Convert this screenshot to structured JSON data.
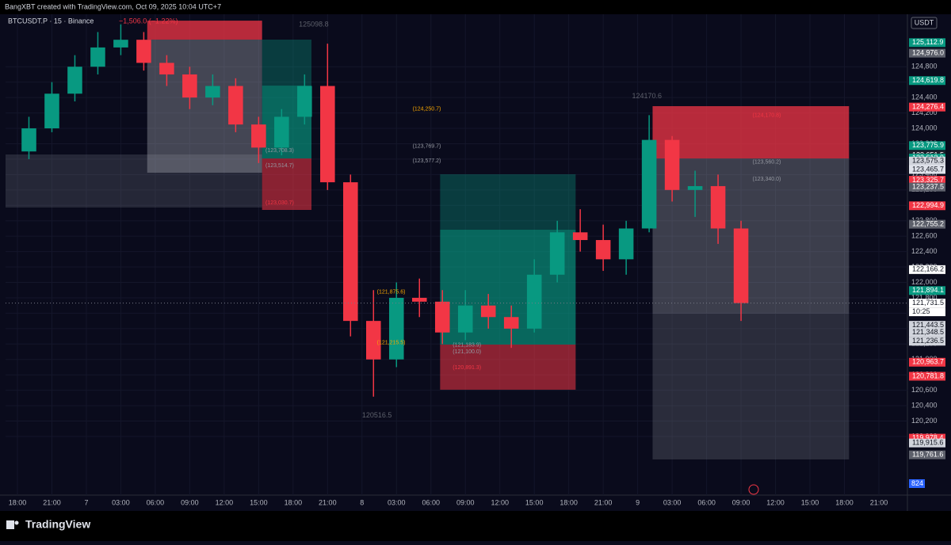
{
  "chart_data": {
    "type": "candlestick",
    "header": "BangXBT created with TradingView.com, Oct 09, 2025 10:04 UTC+7",
    "symbol": "BTCUSDT.P · 15 · Binance",
    "change": "−1,506.0 (−1.22%)",
    "currency": "USDT",
    "brand": "TradingView",
    "up_color": "#089981",
    "down_color": "#f23645",
    "xlim": [
      -1.035,
      77.485
    ],
    "xticks": [
      {
        "value": 0,
        "label": "18:00"
      },
      {
        "value": 3,
        "label": "21:00"
      },
      {
        "value": 6,
        "label": "7"
      },
      {
        "value": 9,
        "label": "03:00"
      },
      {
        "value": 12,
        "label": "06:00"
      },
      {
        "value": 15,
        "label": "09:00"
      },
      {
        "value": 18,
        "label": "12:00"
      },
      {
        "value": 21,
        "label": "15:00"
      },
      {
        "value": 24,
        "label": "18:00"
      },
      {
        "value": 27,
        "label": "21:00"
      },
      {
        "value": 30,
        "label": "8"
      },
      {
        "value": 33,
        "label": "03:00"
      },
      {
        "value": 36,
        "label": "06:00"
      },
      {
        "value": 39,
        "label": "09:00"
      },
      {
        "value": 42,
        "label": "12:00"
      },
      {
        "value": 45,
        "label": "15:00"
      },
      {
        "value": 48,
        "label": "18:00"
      },
      {
        "value": 51,
        "label": "21:00"
      },
      {
        "value": 54,
        "label": "9"
      },
      {
        "value": 57,
        "label": "03:00"
      },
      {
        "value": 60,
        "label": "06:00"
      },
      {
        "value": 63,
        "label": "09:00"
      },
      {
        "value": 66,
        "label": "12:00"
      },
      {
        "value": 69,
        "label": "15:00"
      },
      {
        "value": 72,
        "label": "18:00"
      },
      {
        "value": 75,
        "label": "21:00"
      }
    ],
    "ylim": [
      119239,
      125481
    ],
    "yticks": [
      {
        "value": 120000,
        "label": "120,000"
      },
      {
        "value": 120200,
        "label": "120,200"
      },
      {
        "value": 120400,
        "label": "120,400"
      },
      {
        "value": 120600,
        "label": "120,600"
      },
      {
        "value": 120800,
        "label": "120,800"
      },
      {
        "value": 121000,
        "label": "121,000"
      },
      {
        "value": 121200,
        "label": "121,200"
      },
      {
        "value": 121400,
        "label": "121,400"
      },
      {
        "value": 121600,
        "label": "121,600"
      },
      {
        "value": 121800,
        "label": "121,800"
      },
      {
        "value": 122000,
        "label": "122,000"
      },
      {
        "value": 122200,
        "label": "122,200"
      },
      {
        "value": 122400,
        "label": "122,400"
      },
      {
        "value": 122600,
        "label": "122,600"
      },
      {
        "value": 122800,
        "label": "122,800"
      },
      {
        "value": 123000,
        "label": "123,000"
      },
      {
        "value": 123200,
        "label": "123,200"
      },
      {
        "value": 123400,
        "label": "123,400"
      },
      {
        "value": 123600,
        "label": "123,600"
      },
      {
        "value": 123800,
        "label": "123,800"
      },
      {
        "value": 124000,
        "label": "124,000"
      },
      {
        "value": 124200,
        "label": "124,200"
      },
      {
        "value": 124400,
        "label": "124,400"
      },
      {
        "value": 124600,
        "label": "124,600"
      },
      {
        "value": 124800,
        "label": "124,800"
      }
    ],
    "x": [
      1,
      3,
      5,
      7,
      9,
      11,
      13,
      15,
      17,
      19,
      21,
      23,
      25,
      27,
      29,
      31,
      33,
      35,
      37,
      39,
      41,
      43,
      45,
      47,
      49,
      51,
      53,
      55,
      57,
      59,
      61,
      63
    ],
    "open": [
      123700,
      124000,
      124450,
      124800,
      125050,
      125150,
      124850,
      124700,
      124400,
      124550,
      124050,
      123750,
      124150,
      124550,
      123300,
      121500,
      121000,
      121800,
      121750,
      121350,
      121700,
      121550,
      121400,
      122100,
      122650,
      122550,
      122300,
      122700,
      123850,
      123200,
      123250,
      122700
    ],
    "high": [
      124150,
      124600,
      124950,
      125250,
      125350,
      125250,
      124950,
      124800,
      124700,
      124650,
      124150,
      124250,
      124700,
      125098.8,
      123400,
      121900,
      122000,
      122050,
      121900,
      121900,
      121850,
      121700,
      122300,
      122800,
      122950,
      122750,
      122800,
      124170.6,
      123900,
      123450,
      123400,
      122800
    ],
    "low": [
      123600,
      123950,
      124350,
      124700,
      124950,
      124750,
      124550,
      124250,
      124300,
      123950,
      123550,
      123650,
      124050,
      123200,
      121300,
      120516.5,
      120900,
      121550,
      121200,
      121250,
      121400,
      121150,
      121350,
      122000,
      122400,
      122150,
      122100,
      122650,
      123050,
      122850,
      122500,
      121500
    ],
    "close": [
      124000,
      124450,
      124800,
      125050,
      125150,
      124850,
      124700,
      124400,
      124550,
      124050,
      123750,
      124150,
      124550,
      123300,
      121500,
      121000,
      121800,
      121750,
      121350,
      121700,
      121550,
      121400,
      122100,
      122650,
      122550,
      122300,
      122700,
      123850,
      123200,
      123250,
      122700,
      121731.5
    ],
    "zones": [
      {
        "t": [
          -1.035,
          21.3
        ],
        "price": [
          122972,
          123661
        ],
        "color": "rgba(120,123,134,0.25)"
      },
      {
        "t": [
          11.3,
          21.3
        ],
        "price": [
          125152,
          125398
        ],
        "color": "rgba(242,54,69,0.75)"
      },
      {
        "t": [
          11.3,
          21.3
        ],
        "price": [
          123424,
          125152
        ],
        "color": "rgba(178,181,190,0.35)"
      },
      {
        "t": [
          21.3,
          25.6
        ],
        "price": [
          124555,
          125152
        ],
        "color": "rgba(8,153,129,0.35)"
      },
      {
        "t": [
          21.3,
          25.6
        ],
        "price": [
          123609,
          124555
        ],
        "color": "rgba(8,153,129,0.65)"
      },
      {
        "t": [
          21.3,
          25.6
        ],
        "price": [
          122941,
          123609
        ],
        "color": "rgba(242,54,69,0.55)"
      },
      {
        "t": [
          36.8,
          48.6
        ],
        "price": [
          122684,
          123404
        ],
        "color": "rgba(8,153,129,0.35)"
      },
      {
        "t": [
          36.8,
          48.6
        ],
        "price": [
          121193,
          122684
        ],
        "color": "rgba(8,153,129,0.65)"
      },
      {
        "t": [
          36.8,
          48.6
        ],
        "price": [
          120607,
          121193
        ],
        "color": "rgba(242,54,69,0.55)"
      },
      {
        "t": [
          55.3,
          72.4
        ],
        "price": [
          123609,
          124288
        ],
        "color": "rgba(242,54,69,0.75)"
      },
      {
        "t": [
          55.3,
          72.4
        ],
        "price": [
          121594,
          123609
        ],
        "color": "rgba(178,181,190,0.3)"
      },
      {
        "t": [
          55.3,
          72.4
        ],
        "price": [
          119702,
          121594
        ],
        "color": "rgba(120,123,134,0.3)"
      }
    ],
    "box_labels": [
      {
        "t": 34.4,
        "value": 124250.7,
        "label": "(124,250.7)",
        "color": "#f7a600"
      },
      {
        "t": 34.4,
        "value": 123769.7,
        "label": "(123,769.7)",
        "color": "#9598a1"
      },
      {
        "t": 34.4,
        "value": 123577.2,
        "label": "(123,577.2)",
        "color": "#9598a1"
      },
      {
        "t": 21.6,
        "value": 123708.3,
        "label": "(123,708.3)",
        "color": "#9598a1"
      },
      {
        "t": 21.6,
        "value": 123514.7,
        "label": "(123,514.7)",
        "color": "#9598a1"
      },
      {
        "t": 21.6,
        "value": 123030.7,
        "label": "(123,030.7)",
        "color": "#f23645"
      },
      {
        "t": 64,
        "value": 124170.8,
        "label": "(124,170.8)",
        "color": "#f23645"
      },
      {
        "t": 64,
        "value": 123560.2,
        "label": "(123,560.2)",
        "color": "#9598a1"
      },
      {
        "t": 64,
        "value": 123340.0,
        "label": "(123,340.0)",
        "color": "#9598a1"
      },
      {
        "t": 31.3,
        "value": 121875.6,
        "label": "(121,875.6)",
        "color": "#f7a600"
      },
      {
        "t": 37.9,
        "value": 121183.9,
        "label": "(121,183.9)",
        "color": "#9598a1"
      },
      {
        "t": 37.9,
        "value": 121100.0,
        "label": "(121,100.0)",
        "color": "#9598a1"
      },
      {
        "t": 37.9,
        "value": 120891.3,
        "label": "(120,891.3)",
        "color": "#f23645"
      },
      {
        "t": 31.3,
        "value": 121215.5,
        "label": "(121,215.5)",
        "color": "#f7a600"
      }
    ],
    "extremes": [
      {
        "t": 25.8,
        "value": 125098.8
      },
      {
        "t": 54.8,
        "value": 124170.6
      },
      {
        "t": 31.3,
        "value": 120516.5
      }
    ],
    "price_tags": [
      {
        "value": 125112.9,
        "label": "125,112.9",
        "color": "#089981"
      },
      {
        "value": 124976.0,
        "label": "124,976.0",
        "color": "#5d606b"
      },
      {
        "value": 124619.8,
        "label": "124,619.8",
        "color": "#089981"
      },
      {
        "value": 124276.4,
        "label": "124,276.4",
        "color": "#f23645"
      },
      {
        "value": 123775.9,
        "label": "123,775.9",
        "color": "#089981"
      },
      {
        "value": 123651.5,
        "label": "123,651.5",
        "color": "#1e222d"
      },
      {
        "value": 123613.9,
        "label": "123,613.9",
        "color": "#089981"
      },
      {
        "value": 123575.3,
        "label": "123,575.3",
        "color": "#d1d4dc"
      },
      {
        "value": 123465.7,
        "label": "123,465.7",
        "color": "#e0e3eb"
      },
      {
        "value": 123325.7,
        "label": "123,325.7",
        "color": "#f23645"
      },
      {
        "value": 123237.5,
        "label": "123,237.5",
        "color": "#5d606b"
      },
      {
        "value": 122994.9,
        "label": "122,994.9",
        "color": "#f23645"
      },
      {
        "value": 122755.2,
        "label": "122,755.2",
        "color": "#5d606b"
      },
      {
        "value": 122166.2,
        "label": "122,166.2",
        "color": "#ffffff"
      },
      {
        "value": 121894.1,
        "label": "121,894.1",
        "color": "#089981"
      },
      {
        "value": 121731.5,
        "label": "121,731.5",
        "color": "#ffffff"
      },
      {
        "value": 121443.5,
        "label": "121,443.5",
        "color": "#d1d4dc"
      },
      {
        "value": 121348.5,
        "label": "121,348.5",
        "color": "#d1d4dc"
      },
      {
        "value": 121236.5,
        "label": "121,236.5",
        "color": "#d1d4dc"
      },
      {
        "value": 120963.7,
        "label": "120,963.7",
        "color": "#f23645"
      },
      {
        "value": 120781.8,
        "label": "120,781.8",
        "color": "#f23645"
      },
      {
        "value": 119978.4,
        "label": "119,978.4",
        "color": "#f23645"
      },
      {
        "value": 119915.6,
        "label": "119,915.6",
        "color": "#d1d4dc"
      },
      {
        "value": 119761.6,
        "label": "119,761.6",
        "color": "#5d606b"
      }
    ],
    "countdown": "10:25",
    "volume_tag": 824
  }
}
